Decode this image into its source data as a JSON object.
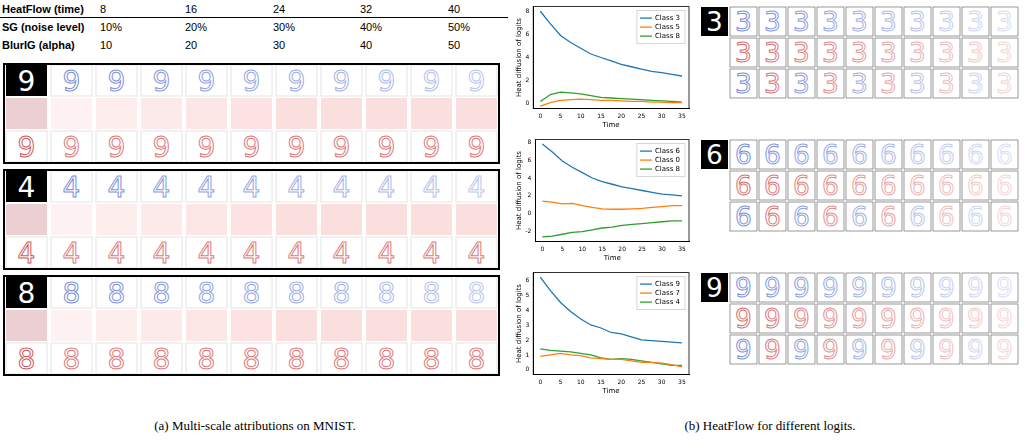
{
  "panel_a": {
    "caption": "(a) Multi-scale attributions on MNIST.",
    "header": [
      {
        "label": "HeatFlow (time)",
        "values": [
          "8",
          "16",
          "24",
          "32",
          "40"
        ]
      },
      {
        "label": "SG (noise level)",
        "values": [
          "10%",
          "20%",
          "30%",
          "40%",
          "50%"
        ]
      },
      {
        "label": "BlurIG (alpha)",
        "values": [
          "10",
          "20",
          "30",
          "40",
          "50"
        ]
      }
    ],
    "digits": [
      "9",
      "4",
      "8"
    ]
  },
  "panel_b": {
    "caption": "(b) HeatFlow for different logits.",
    "digits": [
      "3",
      "6",
      "9"
    ]
  },
  "chart_data": [
    {
      "type": "line",
      "xlabel": "Time",
      "ylabel": "Heat diffusion of logits",
      "x": [
        0,
        2.5,
        5,
        7.5,
        10,
        12.5,
        15,
        17.5,
        20,
        22.5,
        25,
        27.5,
        30,
        32.5,
        35
      ],
      "series": [
        {
          "name": "Class 3",
          "color": "#1f77b4",
          "values": [
            8.0,
            6.9,
            5.9,
            5.3,
            4.8,
            4.3,
            4.0,
            3.7,
            3.4,
            3.2,
            3.0,
            2.8,
            2.7,
            2.55,
            2.4
          ]
        },
        {
          "name": "Class 5",
          "color": "#ff7f0e",
          "values": [
            -0.2,
            0.1,
            0.3,
            0.35,
            0.4,
            0.35,
            0.3,
            0.3,
            0.25,
            0.2,
            0.2,
            0.15,
            0.15,
            0.1,
            0.1
          ]
        },
        {
          "name": "Class 8",
          "color": "#2ca02c",
          "values": [
            0.2,
            0.8,
            1.0,
            0.95,
            0.85,
            0.7,
            0.55,
            0.5,
            0.45,
            0.4,
            0.35,
            0.3,
            0.25,
            0.2,
            0.15
          ]
        }
      ],
      "xlim": [
        -1.75,
        36.75
      ],
      "xticks": [
        0,
        5,
        10,
        15,
        20,
        25,
        30,
        35
      ],
      "ylim": [
        -0.4,
        8.4
      ],
      "yticks": [
        0,
        2,
        4,
        6,
        8
      ],
      "grid": false,
      "legend": "upper right"
    },
    {
      "type": "line",
      "xlabel": "Time",
      "ylabel": "Heat diffusion of logits",
      "x": [
        0,
        2.5,
        5,
        7.5,
        10,
        12.5,
        15,
        17.5,
        20,
        22.5,
        25,
        27.5,
        30,
        32.5,
        35
      ],
      "series": [
        {
          "name": "Class 6",
          "color": "#1f77b4",
          "values": [
            7.8,
            6.9,
            5.9,
            5.2,
            4.6,
            4.0,
            3.6,
            3.3,
            3.0,
            2.8,
            2.6,
            2.4,
            2.2,
            2.1,
            2.0
          ]
        },
        {
          "name": "Class 0",
          "color": "#ff7f0e",
          "values": [
            1.4,
            1.3,
            1.1,
            1.15,
            0.9,
            0.7,
            0.55,
            0.5,
            0.5,
            0.55,
            0.6,
            0.7,
            0.8,
            0.9,
            0.9
          ]
        },
        {
          "name": "Class 8",
          "color": "#2ca02c",
          "values": [
            -2.6,
            -2.5,
            -2.3,
            -2.1,
            -2.0,
            -1.8,
            -1.6,
            -1.5,
            -1.3,
            -1.2,
            -1.1,
            -1.0,
            -0.9,
            -0.8,
            -0.8
          ]
        }
      ],
      "xlim": [
        -1.75,
        36.75
      ],
      "xticks": [
        0,
        5,
        10,
        15,
        20,
        25,
        30,
        35
      ],
      "ylim": [
        -3.1,
        8.3
      ],
      "yticks": [
        -2,
        0,
        2,
        4,
        6,
        8
      ],
      "grid": false,
      "legend": "upper right"
    },
    {
      "type": "line",
      "xlabel": "Time",
      "ylabel": "Heat diffusion of logits",
      "x": [
        0,
        2.5,
        5,
        7.5,
        10,
        12.5,
        15,
        17.5,
        20,
        22.5,
        25,
        27.5,
        30,
        32.5,
        35
      ],
      "series": [
        {
          "name": "Class 9",
          "color": "#1f77b4",
          "values": [
            6.2,
            5.3,
            4.5,
            3.9,
            3.4,
            3.0,
            2.8,
            2.5,
            2.4,
            2.2,
            2.0,
            1.95,
            1.9,
            1.85,
            1.8
          ]
        },
        {
          "name": "Class 7",
          "color": "#ff7f0e",
          "values": [
            0.9,
            1.0,
            1.1,
            1.0,
            0.95,
            0.8,
            0.75,
            0.7,
            0.7,
            0.6,
            0.5,
            0.5,
            0.45,
            0.35,
            0.2
          ]
        },
        {
          "name": "Class 4",
          "color": "#2ca02c",
          "values": [
            1.4,
            1.3,
            1.25,
            1.2,
            1.1,
            1.0,
            0.8,
            0.7,
            0.75,
            0.7,
            0.6,
            0.5,
            0.4,
            0.3,
            0.3
          ]
        }
      ],
      "xlim": [
        -1.75,
        36.75
      ],
      "xticks": [
        0,
        5,
        10,
        15,
        20,
        25,
        30,
        35
      ],
      "ylim": [
        -0.3,
        6.5
      ],
      "yticks": [
        0,
        1,
        2,
        3,
        4,
        5,
        6
      ],
      "grid": false,
      "legend": "upper right"
    }
  ]
}
